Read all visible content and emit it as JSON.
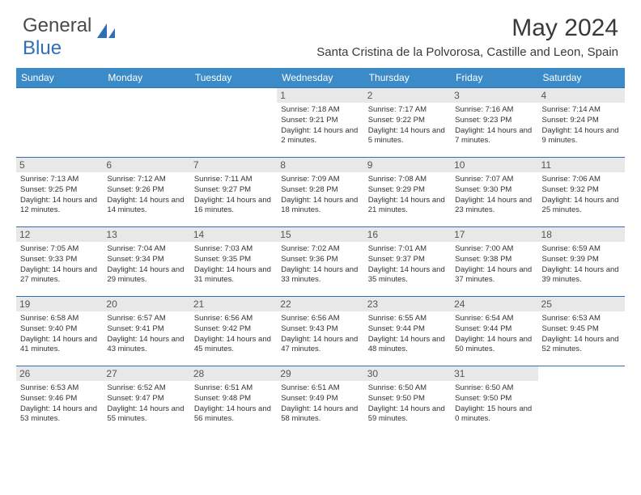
{
  "brand": {
    "text1": "General",
    "text2": "Blue"
  },
  "title": "May 2024",
  "location": "Santa Cristina de la Polvorosa, Castille and Leon, Spain",
  "colors": {
    "header_bg": "#3b8bc9",
    "border": "#2e6fb5",
    "daynum_bg": "#e8e8e8",
    "text": "#333333"
  },
  "wk": [
    "Sunday",
    "Monday",
    "Tuesday",
    "Wednesday",
    "Thursday",
    "Friday",
    "Saturday"
  ],
  "grid": [
    [
      null,
      null,
      null,
      {
        "n": "1",
        "sr": "7:18 AM",
        "ss": "9:21 PM",
        "dl": "14 hours and 2 minutes."
      },
      {
        "n": "2",
        "sr": "7:17 AM",
        "ss": "9:22 PM",
        "dl": "14 hours and 5 minutes."
      },
      {
        "n": "3",
        "sr": "7:16 AM",
        "ss": "9:23 PM",
        "dl": "14 hours and 7 minutes."
      },
      {
        "n": "4",
        "sr": "7:14 AM",
        "ss": "9:24 PM",
        "dl": "14 hours and 9 minutes."
      }
    ],
    [
      {
        "n": "5",
        "sr": "7:13 AM",
        "ss": "9:25 PM",
        "dl": "14 hours and 12 minutes."
      },
      {
        "n": "6",
        "sr": "7:12 AM",
        "ss": "9:26 PM",
        "dl": "14 hours and 14 minutes."
      },
      {
        "n": "7",
        "sr": "7:11 AM",
        "ss": "9:27 PM",
        "dl": "14 hours and 16 minutes."
      },
      {
        "n": "8",
        "sr": "7:09 AM",
        "ss": "9:28 PM",
        "dl": "14 hours and 18 minutes."
      },
      {
        "n": "9",
        "sr": "7:08 AM",
        "ss": "9:29 PM",
        "dl": "14 hours and 21 minutes."
      },
      {
        "n": "10",
        "sr": "7:07 AM",
        "ss": "9:30 PM",
        "dl": "14 hours and 23 minutes."
      },
      {
        "n": "11",
        "sr": "7:06 AM",
        "ss": "9:32 PM",
        "dl": "14 hours and 25 minutes."
      }
    ],
    [
      {
        "n": "12",
        "sr": "7:05 AM",
        "ss": "9:33 PM",
        "dl": "14 hours and 27 minutes."
      },
      {
        "n": "13",
        "sr": "7:04 AM",
        "ss": "9:34 PM",
        "dl": "14 hours and 29 minutes."
      },
      {
        "n": "14",
        "sr": "7:03 AM",
        "ss": "9:35 PM",
        "dl": "14 hours and 31 minutes."
      },
      {
        "n": "15",
        "sr": "7:02 AM",
        "ss": "9:36 PM",
        "dl": "14 hours and 33 minutes."
      },
      {
        "n": "16",
        "sr": "7:01 AM",
        "ss": "9:37 PM",
        "dl": "14 hours and 35 minutes."
      },
      {
        "n": "17",
        "sr": "7:00 AM",
        "ss": "9:38 PM",
        "dl": "14 hours and 37 minutes."
      },
      {
        "n": "18",
        "sr": "6:59 AM",
        "ss": "9:39 PM",
        "dl": "14 hours and 39 minutes."
      }
    ],
    [
      {
        "n": "19",
        "sr": "6:58 AM",
        "ss": "9:40 PM",
        "dl": "14 hours and 41 minutes."
      },
      {
        "n": "20",
        "sr": "6:57 AM",
        "ss": "9:41 PM",
        "dl": "14 hours and 43 minutes."
      },
      {
        "n": "21",
        "sr": "6:56 AM",
        "ss": "9:42 PM",
        "dl": "14 hours and 45 minutes."
      },
      {
        "n": "22",
        "sr": "6:56 AM",
        "ss": "9:43 PM",
        "dl": "14 hours and 47 minutes."
      },
      {
        "n": "23",
        "sr": "6:55 AM",
        "ss": "9:44 PM",
        "dl": "14 hours and 48 minutes."
      },
      {
        "n": "24",
        "sr": "6:54 AM",
        "ss": "9:44 PM",
        "dl": "14 hours and 50 minutes."
      },
      {
        "n": "25",
        "sr": "6:53 AM",
        "ss": "9:45 PM",
        "dl": "14 hours and 52 minutes."
      }
    ],
    [
      {
        "n": "26",
        "sr": "6:53 AM",
        "ss": "9:46 PM",
        "dl": "14 hours and 53 minutes."
      },
      {
        "n": "27",
        "sr": "6:52 AM",
        "ss": "9:47 PM",
        "dl": "14 hours and 55 minutes."
      },
      {
        "n": "28",
        "sr": "6:51 AM",
        "ss": "9:48 PM",
        "dl": "14 hours and 56 minutes."
      },
      {
        "n": "29",
        "sr": "6:51 AM",
        "ss": "9:49 PM",
        "dl": "14 hours and 58 minutes."
      },
      {
        "n": "30",
        "sr": "6:50 AM",
        "ss": "9:50 PM",
        "dl": "14 hours and 59 minutes."
      },
      {
        "n": "31",
        "sr": "6:50 AM",
        "ss": "9:50 PM",
        "dl": "15 hours and 0 minutes."
      },
      null
    ]
  ],
  "labels": {
    "sunrise": "Sunrise:",
    "sunset": "Sunset:",
    "daylight": "Daylight:"
  }
}
